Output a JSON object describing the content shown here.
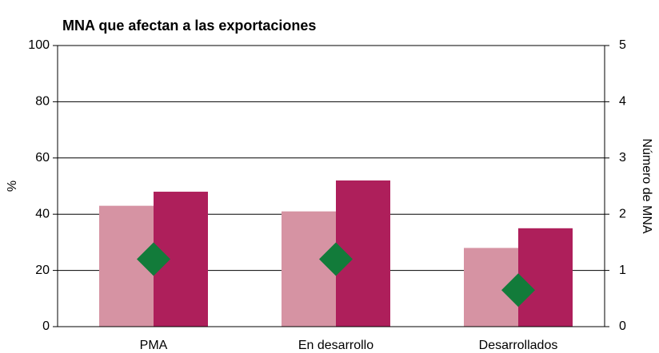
{
  "chart_data": {
    "type": "bar",
    "title": "MNA que afectan a las exportaciones",
    "ylabel": "%",
    "y2label": "Número de MNA",
    "categories": [
      "PMA",
      "En desarrollo",
      "Desarrollados"
    ],
    "series": [
      {
        "color": "#d693a3",
        "values": [
          43,
          41,
          28
        ]
      },
      {
        "color": "#ae1f5b",
        "values": [
          48,
          52,
          35
        ]
      },
      {
        "type": "scatter",
        "marker": "diamond",
        "axis": "y2",
        "color": "#127b3a",
        "values": [
          1.2,
          1.2,
          0.65
        ]
      }
    ],
    "ylim": [
      0,
      100
    ],
    "yticks": [
      0,
      20,
      40,
      60,
      80,
      100
    ],
    "y2lim": [
      0,
      5
    ],
    "y2ticks": [
      0,
      1,
      2,
      3,
      4,
      5
    ],
    "grid": true
  }
}
